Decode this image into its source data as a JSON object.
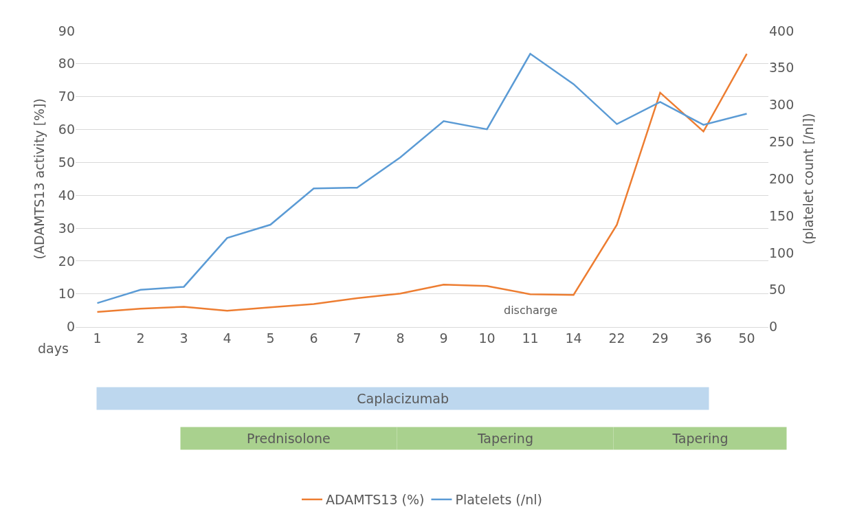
{
  "chart_data": {
    "type": "line",
    "xlabel": "days",
    "ylabel": "(ADAMTS13 activity [%])",
    "y2label": "(platelet count [/nl])",
    "categories": [
      "1",
      "2",
      "3",
      "4",
      "5",
      "6",
      "7",
      "8",
      "9",
      "10",
      "11",
      "14",
      "22",
      "29",
      "36",
      "50"
    ],
    "series": [
      {
        "name": "ADAMTS13 (%)",
        "color": "#ed7d31",
        "values": [
          4.5,
          5.5,
          6.1,
          4.9,
          5.9,
          6.9,
          8.7,
          10.1,
          12.8,
          12.4,
          9.9,
          9.7,
          31,
          71.2,
          59.4,
          83
        ]
      },
      {
        "name": "Platelets (/nl)",
        "color": "#5b9bd5",
        "axis": "y2",
        "values": [
          32,
          50,
          54,
          120,
          138,
          187,
          188,
          229,
          278,
          267,
          369,
          328,
          274,
          304,
          273,
          288
        ]
      }
    ],
    "ylim": [
      0,
      90
    ],
    "yticks": [
      0,
      10,
      20,
      30,
      40,
      50,
      60,
      70,
      80,
      90
    ],
    "y2lim": [
      0,
      400
    ],
    "y2ticks": [
      0,
      50,
      100,
      150,
      200,
      250,
      300,
      350,
      400
    ],
    "grid": "y",
    "legend": "bottom",
    "marker": "none",
    "line_style": "solid",
    "annotations": [
      "discharge",
      "Caplacizumab",
      "Prednisolone",
      "Tapering",
      "Tapering"
    ]
  }
}
